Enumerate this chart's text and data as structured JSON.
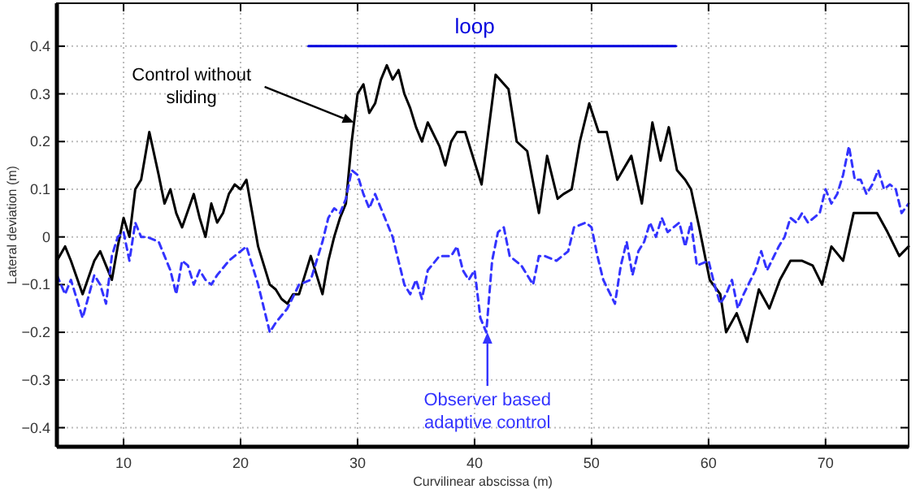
{
  "chart_data": {
    "type": "line",
    "xlabel": "Curvilinear abscissa (m)",
    "ylabel": "Lateral deviation (m)",
    "xlim": [
      4.3,
      77.1
    ],
    "ylim": [
      -0.44,
      0.49
    ],
    "xticks": [
      10,
      20,
      30,
      40,
      50,
      60,
      70
    ],
    "yticks": [
      {
        "value": -0.4,
        "label": "−0.4"
      },
      {
        "value": -0.3,
        "label": "−0.3"
      },
      {
        "value": -0.2,
        "label": "−0.2"
      },
      {
        "value": -0.1,
        "label": "−0.1"
      },
      0,
      0.1,
      0.2,
      0.3,
      0.4
    ],
    "grid": true,
    "series": [
      {
        "color": "#000000",
        "line_style": "solid",
        "x": [
          4.3,
          5,
          5.5,
          6.5,
          7.5,
          8,
          8.5,
          9,
          9.5,
          10,
          10.5,
          11,
          11.5,
          12.2,
          13,
          13.5,
          14,
          14.5,
          15,
          16,
          16.5,
          17,
          17.5,
          18,
          18.5,
          19,
          19.5,
          20,
          20.5,
          21,
          21.5,
          22,
          22.5,
          23,
          23.5,
          24,
          24.5,
          25,
          25.5,
          26,
          26.5,
          27,
          27.5,
          28,
          28.5,
          29,
          29.5,
          30,
          30.5,
          31,
          31.5,
          32,
          32.5,
          33,
          33.5,
          34,
          34.5,
          35,
          35.5,
          36,
          37,
          37.5,
          38,
          38.5,
          39.2,
          40.6,
          41.8,
          42.9,
          43.6,
          44.5,
          45.5,
          46.2,
          46.6,
          47.1,
          47.6,
          48.3,
          49,
          49.8,
          50.6,
          51.3,
          52.2,
          53.4,
          54.3,
          55.2,
          55.9,
          56.6,
          57.3,
          58,
          58.5,
          59.2,
          60.1,
          61,
          61.5,
          62.4,
          63.3,
          64.3,
          65.2,
          66.1,
          67,
          68,
          68.9,
          69.7,
          70.5,
          71.5,
          72.4,
          73.4,
          74.4,
          75.3,
          76.3,
          77.1
        ],
        "values": [
          -0.05,
          -0.02,
          -0.05,
          -0.12,
          -0.05,
          -0.03,
          -0.06,
          -0.09,
          -0.02,
          0.04,
          0.0,
          0.1,
          0.12,
          0.22,
          0.13,
          0.07,
          0.1,
          0.05,
          0.02,
          0.09,
          0.04,
          0.0,
          0.07,
          0.03,
          0.05,
          0.09,
          0.11,
          0.1,
          0.12,
          0.05,
          -0.02,
          -0.06,
          -0.1,
          -0.11,
          -0.13,
          -0.14,
          -0.12,
          -0.12,
          -0.08,
          -0.04,
          -0.08,
          -0.12,
          -0.05,
          0.0,
          0.04,
          0.07,
          0.2,
          0.3,
          0.32,
          0.26,
          0.28,
          0.33,
          0.36,
          0.33,
          0.35,
          0.3,
          0.27,
          0.23,
          0.2,
          0.24,
          0.19,
          0.15,
          0.2,
          0.22,
          0.22,
          0.11,
          0.34,
          0.31,
          0.2,
          0.18,
          0.05,
          0.17,
          0.13,
          0.08,
          0.09,
          0.1,
          0.2,
          0.28,
          0.22,
          0.22,
          0.12,
          0.17,
          0.07,
          0.24,
          0.16,
          0.23,
          0.14,
          0.12,
          0.1,
          0.02,
          -0.09,
          -0.12,
          -0.2,
          -0.16,
          -0.22,
          -0.11,
          -0.15,
          -0.09,
          -0.05,
          -0.05,
          -0.06,
          -0.1,
          -0.02,
          -0.05,
          0.05,
          0.05,
          0.05,
          0.01,
          -0.04,
          -0.02
        ]
      },
      {
        "color": "#3333ff",
        "line_style": "dashed",
        "x": [
          4.3,
          5,
          5.5,
          6.5,
          7.5,
          8,
          8.5,
          9,
          9.5,
          10,
          10.5,
          11,
          11.5,
          12,
          13,
          14,
          14.5,
          15,
          15.5,
          16,
          16.5,
          17,
          17.5,
          18,
          19,
          20,
          20.5,
          21,
          21.5,
          22,
          22.5,
          23,
          24,
          25,
          26,
          26.5,
          27,
          27.5,
          28,
          28.5,
          29,
          29.5,
          30,
          30.5,
          31,
          31.5,
          32,
          32.5,
          33,
          33.5,
          34,
          34.5,
          35,
          35.5,
          36,
          37,
          38,
          38.5,
          39,
          39.5,
          40,
          40.5,
          41,
          41.5,
          42,
          42.5,
          43,
          44,
          45,
          45.5,
          46,
          47,
          48,
          48.5,
          49.5,
          50,
          50.5,
          51,
          52,
          52.5,
          53,
          53.5,
          54,
          54.5,
          55,
          55.5,
          56,
          56.5,
          57,
          57.5,
          58,
          58.5,
          59,
          60,
          60.5,
          61,
          61.5,
          62,
          62.5,
          63,
          64,
          64.5,
          65,
          66,
          66.5,
          67,
          67.5,
          68,
          68.5,
          69,
          69.5,
          70,
          70.5,
          71,
          71.5,
          72,
          72.5,
          73,
          73.5,
          74,
          74.5,
          75,
          75.5,
          76,
          76.5,
          77.1
        ],
        "values": [
          -0.08,
          -0.12,
          -0.09,
          -0.17,
          -0.08,
          -0.1,
          -0.14,
          -0.04,
          0.0,
          0.01,
          -0.05,
          0.03,
          0.0,
          0.0,
          -0.01,
          -0.07,
          -0.12,
          -0.05,
          -0.06,
          -0.1,
          -0.07,
          -0.09,
          -0.1,
          -0.08,
          -0.05,
          -0.03,
          -0.02,
          -0.06,
          -0.1,
          -0.15,
          -0.2,
          -0.18,
          -0.15,
          -0.1,
          -0.09,
          -0.05,
          -0.01,
          0.04,
          0.06,
          0.05,
          0.08,
          0.14,
          0.13,
          0.09,
          0.06,
          0.09,
          0.06,
          0.03,
          0.0,
          -0.05,
          -0.1,
          -0.12,
          -0.09,
          -0.13,
          -0.07,
          -0.04,
          -0.04,
          -0.02,
          -0.07,
          -0.09,
          -0.07,
          -0.17,
          -0.2,
          -0.05,
          0.01,
          0.02,
          -0.04,
          -0.06,
          -0.1,
          -0.04,
          -0.04,
          -0.05,
          -0.03,
          0.02,
          0.03,
          0.02,
          -0.04,
          -0.09,
          -0.14,
          -0.06,
          -0.01,
          -0.08,
          -0.03,
          -0.01,
          0.03,
          0.0,
          0.04,
          0.01,
          0.02,
          0.03,
          -0.02,
          0.03,
          -0.06,
          -0.05,
          -0.1,
          -0.14,
          -0.12,
          -0.09,
          -0.15,
          -0.12,
          -0.07,
          -0.03,
          -0.07,
          -0.02,
          0.0,
          0.04,
          0.03,
          0.05,
          0.03,
          0.04,
          0.05,
          0.1,
          0.07,
          0.09,
          0.13,
          0.19,
          0.12,
          0.12,
          0.09,
          0.11,
          0.14,
          0.1,
          0.11,
          0.1,
          0.05,
          0.07
        ]
      },
      {
        "name": "loop",
        "color": "#0000dd",
        "line_style": "solid",
        "x": [
          25.8,
          57.2
        ],
        "values": [
          0.4,
          0.4
        ]
      }
    ],
    "annotations": [
      {
        "text": "Control without sliding",
        "x": 29.7,
        "y": 0.24
      },
      {
        "text": "Observer based adaptive control",
        "x": 41.1,
        "y": -0.2
      }
    ]
  }
}
